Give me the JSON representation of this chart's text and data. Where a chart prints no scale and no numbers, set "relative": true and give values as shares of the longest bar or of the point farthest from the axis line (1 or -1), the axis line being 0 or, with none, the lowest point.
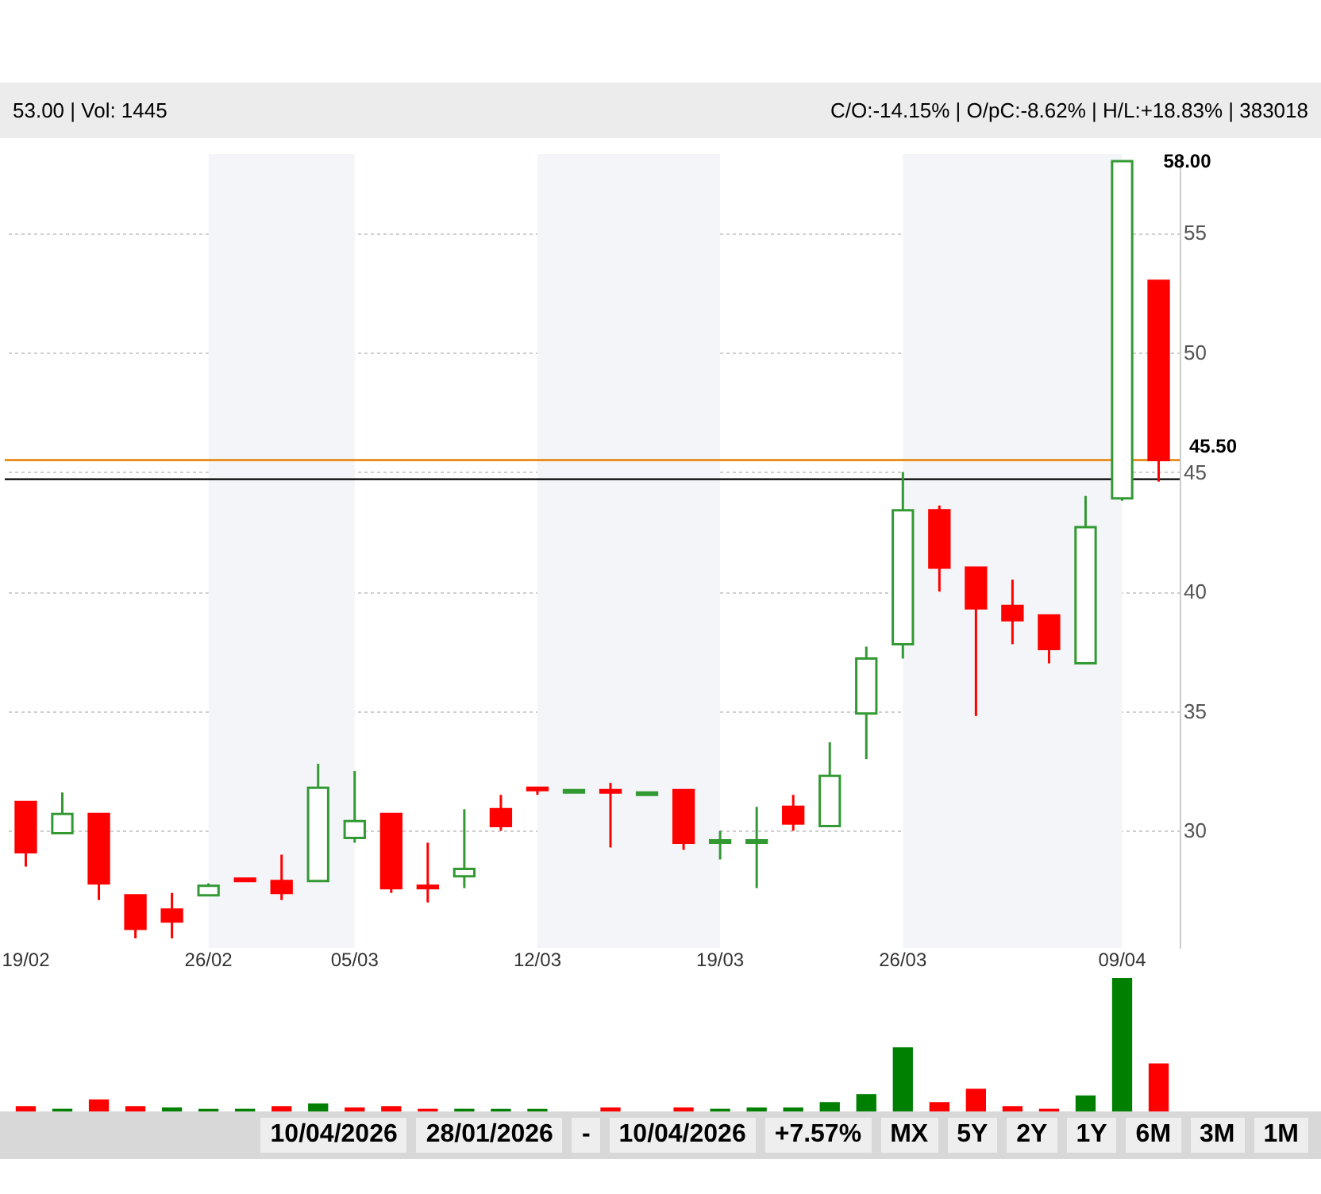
{
  "chart_data": [
    {
      "type": "candlestick",
      "title": "53.00 | Vol: 1445",
      "subtitle": "C/O:-14.15% | O/pC:-8.62% | H/L:+18.83% | 383018",
      "categories": [
        "19/02",
        null,
        null,
        null,
        null,
        "26/02",
        null,
        null,
        null,
        "05/03",
        null,
        null,
        null,
        null,
        "12/03",
        null,
        null,
        null,
        null,
        "19/03",
        null,
        null,
        null,
        null,
        "26/03",
        null,
        null,
        null,
        null,
        null,
        "09/04",
        null
      ],
      "ohlc": [
        [
          31.2,
          31.2,
          28.5,
          29.1
        ],
        [
          29.9,
          31.6,
          29.9,
          30.7
        ],
        [
          30.7,
          30.7,
          27.1,
          27.8
        ],
        [
          27.3,
          27.3,
          25.5,
          25.9
        ],
        [
          26.7,
          27.4,
          25.5,
          26.2
        ],
        [
          27.3,
          27.8,
          27.3,
          27.7
        ],
        [
          28.0,
          28.0,
          27.9,
          27.9
        ],
        [
          27.9,
          29.0,
          27.1,
          27.4
        ],
        [
          27.9,
          32.8,
          27.9,
          31.8
        ],
        [
          29.7,
          32.5,
          29.5,
          30.4
        ],
        [
          30.7,
          30.7,
          27.4,
          27.6
        ],
        [
          27.7,
          29.5,
          27.0,
          27.6
        ],
        [
          28.1,
          30.9,
          27.6,
          28.4
        ],
        [
          30.9,
          31.5,
          30.0,
          30.2
        ],
        [
          31.8,
          31.8,
          31.5,
          31.7
        ],
        [
          31.6,
          31.7,
          31.6,
          31.7
        ],
        [
          31.7,
          32.0,
          29.3,
          31.6
        ],
        [
          31.5,
          31.6,
          31.5,
          31.6
        ],
        [
          31.7,
          31.7,
          29.2,
          29.5
        ],
        [
          29.5,
          30.0,
          28.8,
          29.6
        ],
        [
          29.5,
          31.0,
          27.6,
          29.6
        ],
        [
          31.0,
          31.5,
          30.0,
          30.3
        ],
        [
          30.2,
          33.7,
          30.2,
          32.3
        ],
        [
          34.9,
          37.7,
          33.0,
          37.2
        ],
        [
          37.8,
          45.0,
          37.2,
          43.4
        ],
        [
          43.4,
          43.6,
          40.0,
          41.0
        ],
        [
          41.0,
          41.0,
          34.8,
          39.3
        ],
        [
          39.4,
          40.5,
          37.8,
          38.8
        ],
        [
          39.0,
          39.0,
          37.0,
          37.6
        ],
        [
          37.0,
          44.0,
          37.0,
          42.7
        ],
        [
          43.9,
          58.0,
          43.8,
          58.0
        ],
        [
          53.0,
          53.0,
          44.6,
          45.5
        ]
      ],
      "colors": [
        "#ff0000",
        "#339933",
        "#ff0000",
        "#ff0000",
        "#ff0000",
        "#339933",
        "#ff0000",
        "#ff0000",
        "#339933",
        "#339933",
        "#ff0000",
        "#ff0000",
        "#339933",
        "#ff0000",
        "#ff0000",
        "#339933",
        "#ff0000",
        "#339933",
        "#ff0000",
        "#339933",
        "#339933",
        "#ff0000",
        "#339933",
        "#339933",
        "#339933",
        "#ff0000",
        "#ff0000",
        "#ff0000",
        "#ff0000",
        "#339933",
        "#339933",
        "#ff0000"
      ],
      "ylim": [
        25.1,
        58.3
      ],
      "yticks": [
        30,
        35,
        40,
        45,
        50,
        55
      ],
      "grid": "y",
      "ref_lines": [
        {
          "axis": "y",
          "value": 45.5,
          "label": "45.50",
          "color": "#e67e00"
        },
        {
          "axis": "y",
          "value": 44.7,
          "color": "#000000"
        }
      ],
      "bands": [
        {
          "axis": "x",
          "from": "26/02",
          "to": "05/03",
          "color": "#f4f5f8"
        },
        {
          "axis": "x",
          "from": "12/03",
          "to": "19/03",
          "color": "#f4f5f8"
        },
        {
          "axis": "x",
          "from": "26/03",
          "to": "09/04",
          "color": "#f4f5f8"
        }
      ],
      "annotations": [
        {
          "text": "58.00",
          "x": "09/04",
          "y": 58.0
        }
      ]
    },
    {
      "type": "bar",
      "relative": true,
      "tick_labels": false,
      "categories": [
        null,
        null,
        null,
        null,
        null,
        null,
        null,
        null,
        null,
        null,
        null,
        null,
        null,
        null,
        null,
        null,
        null,
        null,
        null,
        null,
        null,
        null,
        null,
        null,
        null,
        null,
        null,
        null,
        null,
        null,
        null,
        null
      ],
      "values": [
        0.04,
        0.02,
        0.09,
        0.04,
        0.03,
        0.02,
        0.02,
        0.04,
        0.06,
        0.03,
        0.04,
        0.02,
        0.02,
        0.02,
        0.02,
        0,
        0.03,
        0,
        0.03,
        0.02,
        0.03,
        0.03,
        0.07,
        0.13,
        0.48,
        0.07,
        0.17,
        0.04,
        0.02,
        0.12,
        1,
        0.36
      ],
      "colors": [
        "#ff0000",
        "#008000",
        "#ff0000",
        "#ff0000",
        "#008000",
        "#008000",
        "#008000",
        "#ff0000",
        "#008000",
        "#ff0000",
        "#ff0000",
        "#ff0000",
        "#008000",
        "#008000",
        "#008000",
        "#008000",
        "#ff0000",
        "#008000",
        "#ff0000",
        "#008000",
        "#008000",
        "#008000",
        "#008000",
        "#008000",
        "#008000",
        "#ff0000",
        "#ff0000",
        "#ff0000",
        "#ff0000",
        "#008000",
        "#008000",
        "#ff0000"
      ],
      "annotations": [
        "10/04/2026",
        "28/01/2026",
        "-",
        "10/04/2026",
        "+7.57%",
        "MX",
        "5Y",
        "2Y",
        "1Y",
        "6M",
        "3M",
        "1M"
      ]
    }
  ]
}
